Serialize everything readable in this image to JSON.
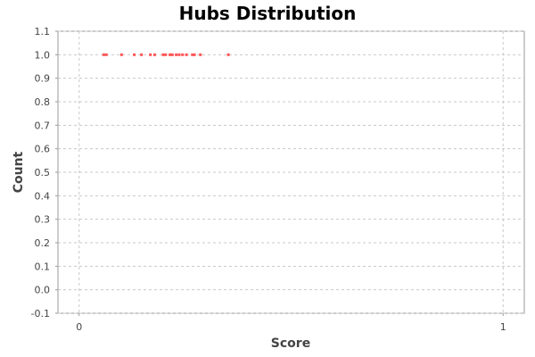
{
  "chart_data": {
    "type": "scatter",
    "title": "Hubs Distribution",
    "xlabel": "Score",
    "ylabel": "Count",
    "xlim": [
      -0.05,
      1.05
    ],
    "ylim": [
      -0.1,
      1.1
    ],
    "x_ticks": [
      0,
      1
    ],
    "x_tick_labels": [
      "0",
      "1"
    ],
    "y_ticks": [
      -0.1,
      0.0,
      0.1,
      0.2,
      0.3,
      0.4,
      0.5,
      0.6,
      0.7,
      0.8,
      0.9,
      1.0,
      1.1
    ],
    "y_tick_labels": [
      "-0.1",
      "0.0",
      "0.1",
      "0.2",
      "0.3",
      "0.4",
      "0.5",
      "0.6",
      "0.7",
      "0.8",
      "0.9",
      "1.0",
      "1.1"
    ],
    "grid": true,
    "legend": "none",
    "series": [
      {
        "color": "#ff5555",
        "points": [
          {
            "x": 0.058,
            "y": 1.0
          },
          {
            "x": 0.064,
            "y": 1.0
          },
          {
            "x": 0.1,
            "y": 1.0
          },
          {
            "x": 0.13,
            "y": 1.0
          },
          {
            "x": 0.147,
            "y": 1.0
          },
          {
            "x": 0.168,
            "y": 1.0
          },
          {
            "x": 0.178,
            "y": 1.0
          },
          {
            "x": 0.198,
            "y": 1.0
          },
          {
            "x": 0.204,
            "y": 1.0
          },
          {
            "x": 0.214,
            "y": 1.0
          },
          {
            "x": 0.22,
            "y": 1.0
          },
          {
            "x": 0.229,
            "y": 1.0
          },
          {
            "x": 0.236,
            "y": 1.0
          },
          {
            "x": 0.244,
            "y": 1.0
          },
          {
            "x": 0.253,
            "y": 1.0
          },
          {
            "x": 0.267,
            "y": 1.0
          },
          {
            "x": 0.272,
            "y": 1.0
          },
          {
            "x": 0.286,
            "y": 1.0
          },
          {
            "x": 0.352,
            "y": 1.0
          }
        ]
      }
    ]
  }
}
